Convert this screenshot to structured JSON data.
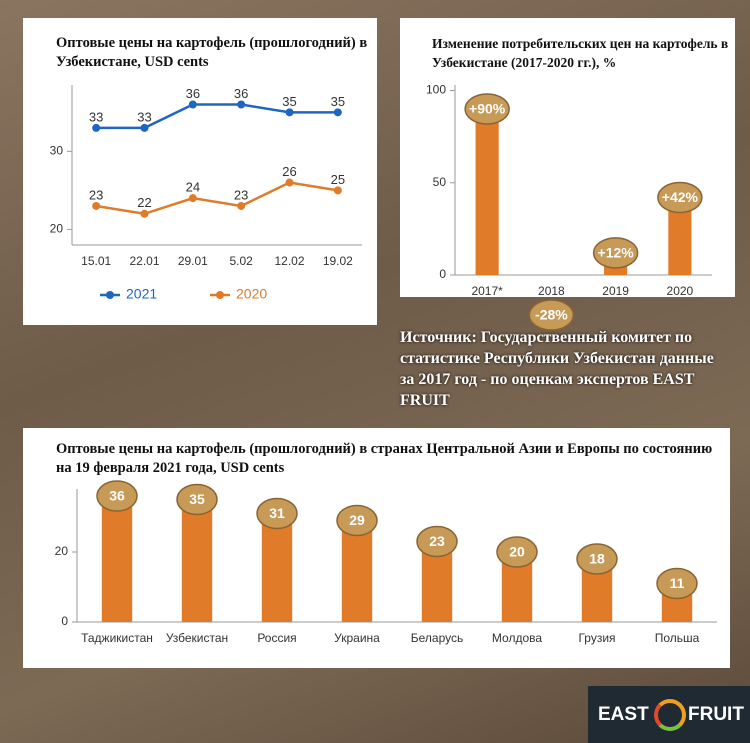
{
  "chart_data": [
    {
      "type": "line",
      "title": "Оптовые цены на картофель (прошлогодний) в Узбекистане, USD cents",
      "categories": [
        "15.01",
        "22.01",
        "29.01",
        "5.02",
        "12.02",
        "19.02"
      ],
      "series": [
        {
          "name": "2021",
          "color": "#1f66c1",
          "values": [
            33,
            33,
            36,
            36,
            35,
            35
          ]
        },
        {
          "name": "2020",
          "color": "#e07b2a",
          "values": [
            23,
            22,
            24,
            23,
            26,
            25
          ]
        }
      ],
      "ylim": [
        18,
        38.5
      ],
      "yticks": [
        20,
        30
      ],
      "grid": false
    },
    {
      "type": "bar",
      "title": "Изменение потребительских цен на картофель в Узбекистане (2017-2020 гг.), %",
      "categories": [
        "2017*",
        "2018",
        "2019",
        "2020"
      ],
      "values": [
        90,
        -28,
        12,
        42
      ],
      "value_labels": [
        "+90%",
        "-28%",
        "+12%",
        "+42%"
      ],
      "color": "#e07b2a",
      "ylim": [
        0,
        103
      ],
      "yticks": [
        0,
        50,
        100
      ],
      "grid": false
    },
    {
      "type": "bar",
      "title": "Оптовые цены на картофель (прошлогодний) в странах Центральной Азии и Европы по состоянию на 19 февраля 2021 года, USD cents",
      "categories": [
        "Таджикистан",
        "Узбекистан",
        "Россия",
        "Украина",
        "Беларусь",
        "Молдова",
        "Грузия",
        "Польша"
      ],
      "values": [
        36,
        35,
        31,
        29,
        23,
        20,
        18,
        11
      ],
      "color": "#e07b2a",
      "ylim": [
        0,
        38
      ],
      "yticks": [
        0,
        20
      ],
      "grid": false
    }
  ],
  "source": "Источник: Государственный комитет по статистике Республики Узбекистан данные за 2017 год - по оценкам экспертов EAST FRUIT",
  "logo": [
    "EAST",
    "FRUIT"
  ]
}
